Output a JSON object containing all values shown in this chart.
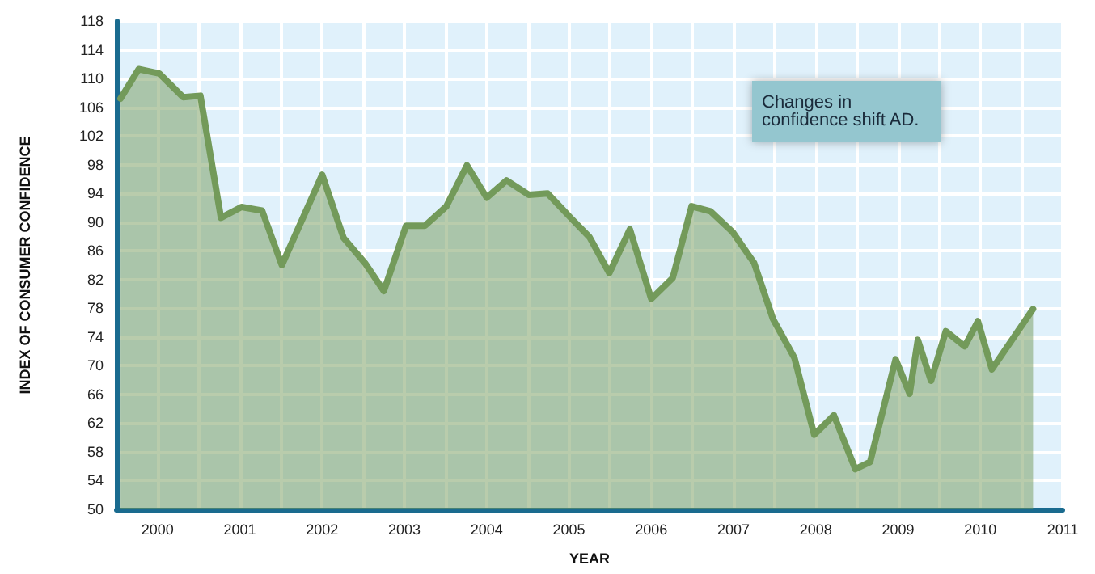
{
  "chart_data": {
    "type": "area",
    "xlabel": "YEAR",
    "ylabel": "INDEX OF CONSUMER CONFIDENCE",
    "annotations": [
      "Changes in confidence shift AD."
    ],
    "x": [
      2000.05,
      2000.27,
      2000.52,
      2000.81,
      2001.02,
      2001.27,
      2001.52,
      2001.77,
      2002.01,
      2002.5,
      2002.76,
      2003.02,
      2003.25,
      2003.52,
      2003.75,
      2004.01,
      2004.26,
      2004.5,
      2004.74,
      2005.01,
      2005.24,
      2005.52,
      2005.75,
      2005.99,
      2006.24,
      2006.5,
      2006.76,
      2006.99,
      2007.22,
      2007.49,
      2007.75,
      2007.98,
      2008.24,
      2008.48,
      2008.72,
      2008.98,
      2009.16,
      2009.47,
      2009.64,
      2009.74,
      2009.9,
      2010.08,
      2010.31,
      2010.47,
      2010.64,
      2011.14
    ],
    "values": [
      107.2,
      111.3,
      110.7,
      107.4,
      107.6,
      90.6,
      92.1,
      91.6,
      84.0,
      96.6,
      87.8,
      84.3,
      80.4,
      89.5,
      89.5,
      92.2,
      97.9,
      93.4,
      95.8,
      93.8,
      94.0,
      90.6,
      87.9,
      82.9,
      89.0,
      79.3,
      82.2,
      92.2,
      91.5,
      88.6,
      84.3,
      76.5,
      71.1,
      60.4,
      63.1,
      55.6,
      56.6,
      70.9,
      66.1,
      73.6,
      67.9,
      74.8,
      72.7,
      76.2,
      69.5,
      77.9
    ],
    "color": "#739a5a",
    "xlim": [
      2000,
      2011.5
    ],
    "xticks": [
      {
        "value": 2000,
        "label": null
      },
      {
        "value": 2000.5,
        "label": "2000"
      },
      {
        "value": 2001,
        "label": null
      },
      {
        "value": 2001.5,
        "label": "2001"
      },
      {
        "value": 2002,
        "label": null
      },
      {
        "value": 2002.5,
        "label": "2002"
      },
      {
        "value": 2003,
        "label": null
      },
      {
        "value": 2003.5,
        "label": "2003"
      },
      {
        "value": 2004,
        "label": null
      },
      {
        "value": 2004.5,
        "label": "2004"
      },
      {
        "value": 2005,
        "label": null
      },
      {
        "value": 2005.5,
        "label": "2005"
      },
      {
        "value": 2006,
        "label": null
      },
      {
        "value": 2006.5,
        "label": "2006"
      },
      {
        "value": 2007,
        "label": null
      },
      {
        "value": 2007.5,
        "label": "2007"
      },
      {
        "value": 2008,
        "label": null
      },
      {
        "value": 2008.5,
        "label": "2008"
      },
      {
        "value": 2009,
        "label": null
      },
      {
        "value": 2009.5,
        "label": "2009"
      },
      {
        "value": 2010,
        "label": null
      },
      {
        "value": 2010.5,
        "label": "2010"
      },
      {
        "value": 2011,
        "label": null
      },
      {
        "value": 2011.5,
        "label": "2011"
      }
    ],
    "ylim": [
      50,
      118
    ],
    "yticks": [
      50,
      54,
      58,
      62,
      66,
      70,
      74,
      78,
      82,
      86,
      90,
      94,
      98,
      102,
      106,
      110,
      114,
      118
    ],
    "grid": true,
    "marker": "none",
    "line_style": "solid"
  }
}
